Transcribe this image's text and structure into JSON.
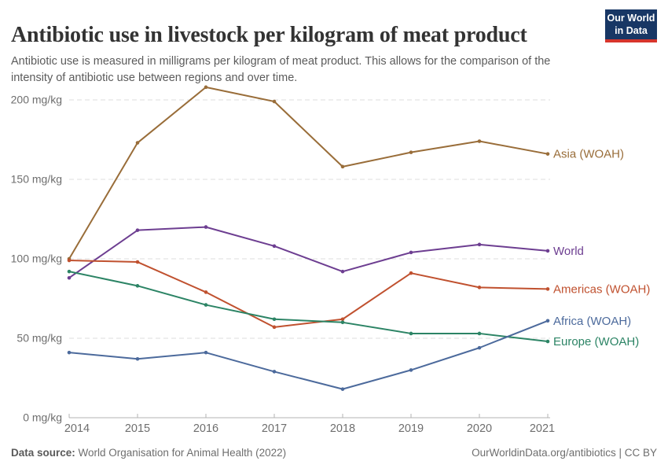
{
  "header": {
    "title": "Antibiotic use in livestock per kilogram of meat product",
    "subtitle": "Antibiotic use is measured in milligrams per kilogram of meat product. This allows for the comparison of the intensity of antibiotic use between regions and over time.",
    "logo": {
      "line1": "Our World",
      "line2": "in Data",
      "bg_color": "#183765",
      "accent_color": "#d7352c"
    }
  },
  "footer": {
    "datasource_label": "Data source:",
    "datasource_value": " World Organisation for Animal Health (2022)",
    "credit": "OurWorldinData.org/antibiotics | CC BY"
  },
  "chart_data": {
    "type": "line",
    "title": "Antibiotic use in livestock per kilogram of meat product",
    "unit": "mg/kg",
    "x": [
      2014,
      2015,
      2016,
      2017,
      2018,
      2019,
      2020,
      2021
    ],
    "yticks": [
      0,
      50,
      100,
      150,
      200
    ],
    "ytick_suffix": " mg/kg",
    "ylim": [
      0,
      210
    ],
    "grid": "horizontal-dashed",
    "legend_position": "right-of-line-end",
    "series": [
      {
        "name": "Asia (WOAH)",
        "color": "#996D39",
        "values": [
          100,
          173,
          208,
          199,
          158,
          167,
          174,
          166
        ]
      },
      {
        "name": "World",
        "color": "#6D3E91",
        "values": [
          88,
          118,
          120,
          108,
          92,
          104,
          109,
          105
        ]
      },
      {
        "name": "Americas (WOAH)",
        "color": "#C0512F",
        "values": [
          99,
          98,
          79,
          57,
          62,
          91,
          82,
          81
        ]
      },
      {
        "name": "Europe (WOAH)",
        "color": "#2C8465",
        "values": [
          92,
          83,
          71,
          62,
          60,
          53,
          53,
          48
        ]
      },
      {
        "name": "Africa (WOAH)",
        "color": "#4C6A9C",
        "values": [
          41,
          37,
          41,
          29,
          18,
          30,
          44,
          61
        ]
      }
    ]
  }
}
